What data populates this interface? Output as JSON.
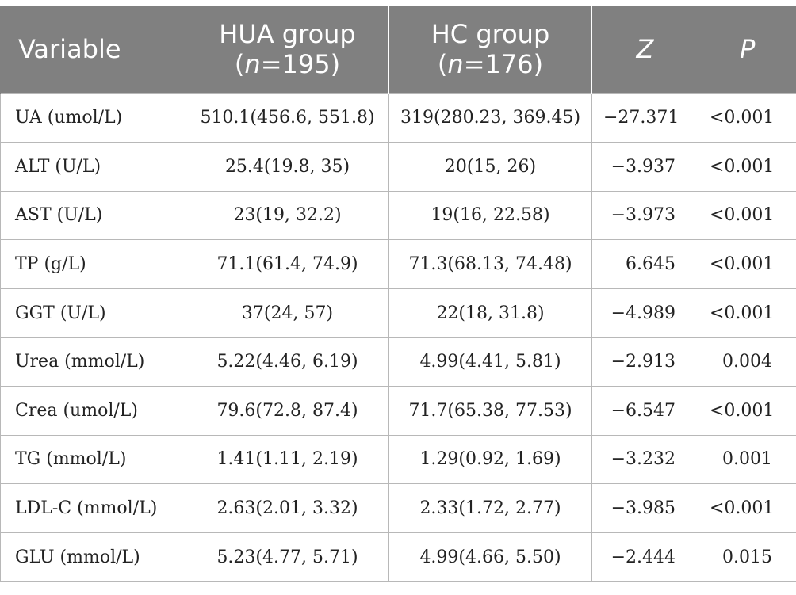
{
  "header": {
    "variable": "Variable",
    "hua_line1": "HUA group",
    "hua_n": "n",
    "hua_count": "=195)",
    "hc_line1": "HC group",
    "hc_n": "n",
    "hc_count": "=176)",
    "z": "Z",
    "p": "P"
  },
  "rows": [
    {
      "variable": "UA (umol/L)",
      "hua": "510.1(456.6, 551.8)",
      "hc": "319(280.23, 369.45)",
      "z": "−27.371",
      "p": "<0.001"
    },
    {
      "variable": "ALT (U/L)",
      "hua": "25.4(19.8, 35)",
      "hc": "20(15, 26)",
      "z": "−3.937",
      "p": "<0.001"
    },
    {
      "variable": "AST (U/L)",
      "hua": "23(19, 32.2)",
      "hc": "19(16, 22.58)",
      "z": "−3.973",
      "p": "<0.001"
    },
    {
      "variable": "TP (g/L)",
      "hua": "71.1(61.4, 74.9)",
      "hc": "71.3(68.13, 74.48)",
      "z": "6.645",
      "p": "<0.001"
    },
    {
      "variable": "GGT (U/L)",
      "hua": "37(24, 57)",
      "hc": "22(18, 31.8)",
      "z": "−4.989",
      "p": "<0.001"
    },
    {
      "variable": "Urea (mmol/L)",
      "hua": "5.22(4.46, 6.19)",
      "hc": "4.99(4.41, 5.81)",
      "z": "−2.913",
      "p": "0.004"
    },
    {
      "variable": "Crea (umol/L)",
      "hua": "79.6(72.8, 87.4)",
      "hc": "71.7(65.38, 77.53)",
      "z": "−6.547",
      "p": "<0.001"
    },
    {
      "variable": "TG (mmol/L)",
      "hua": "1.41(1.11, 2.19)",
      "hc": "1.29(0.92, 1.69)",
      "z": "−3.232",
      "p": "0.001"
    },
    {
      "variable": "LDL-C (mmol/L)",
      "hua": "2.63(2.01, 3.32)",
      "hc": "2.33(1.72, 2.77)",
      "z": "−3.985",
      "p": "<0.001"
    },
    {
      "variable": "GLU (mmol/L)",
      "hua": "5.23(4.77, 5.71)",
      "hc": "4.99(4.66, 5.50)",
      "z": "−2.444",
      "p": "0.015"
    }
  ]
}
